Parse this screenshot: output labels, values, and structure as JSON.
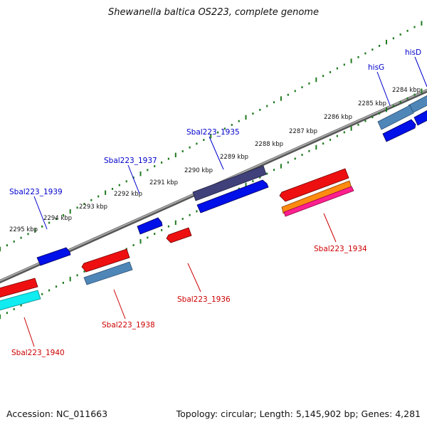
{
  "title": "Shewanella baltica OS223, complete genome",
  "footer": {
    "accession": "Accession: NC_011663",
    "summary": "Topology: circular; Length: 5,145,902 bp; Genes: 4,281"
  },
  "colors": {
    "backbone": "#8a8a8a",
    "tick": "#1f7a1f",
    "forward_label": "#0000cc",
    "reverse_label": "#cc0000",
    "cds_blue": "#0010e8",
    "cds_red": "#ee1010",
    "cds_steel": "#4f86b8",
    "cds_purple": "#40407a",
    "cds_orange": "#ff8a10",
    "cds_pink": "#ff2090",
    "cds_cyan": "#10ecf0"
  },
  "kbp_ticks": [
    {
      "label": "2284 kbp",
      "kbp": 2284
    },
    {
      "label": "2285 kbp",
      "kbp": 2285
    },
    {
      "label": "2286 kbp",
      "kbp": 2286
    },
    {
      "label": "2287 kbp",
      "kbp": 2287
    },
    {
      "label": "2288 kbp",
      "kbp": 2288
    },
    {
      "label": "2289 kbp",
      "kbp": 2289
    },
    {
      "label": "2290 kbp",
      "kbp": 2290
    },
    {
      "label": "2291 kbp",
      "kbp": 2291
    },
    {
      "label": "2292 kbp",
      "kbp": 2292
    },
    {
      "label": "2293 kbp",
      "kbp": 2293
    },
    {
      "label": "2294 kbp",
      "kbp": 2294
    },
    {
      "label": "2295 kbp",
      "kbp": 2295
    }
  ],
  "gene_labels": {
    "forward": [
      "hisD",
      "hisG",
      "Sbal223_1935",
      "Sbal223_1937",
      "Sbal223_1939"
    ],
    "reverse": [
      "Sbal223_1934",
      "Sbal223_1936",
      "Sbal223_1938",
      "Sbal223_1940"
    ]
  }
}
